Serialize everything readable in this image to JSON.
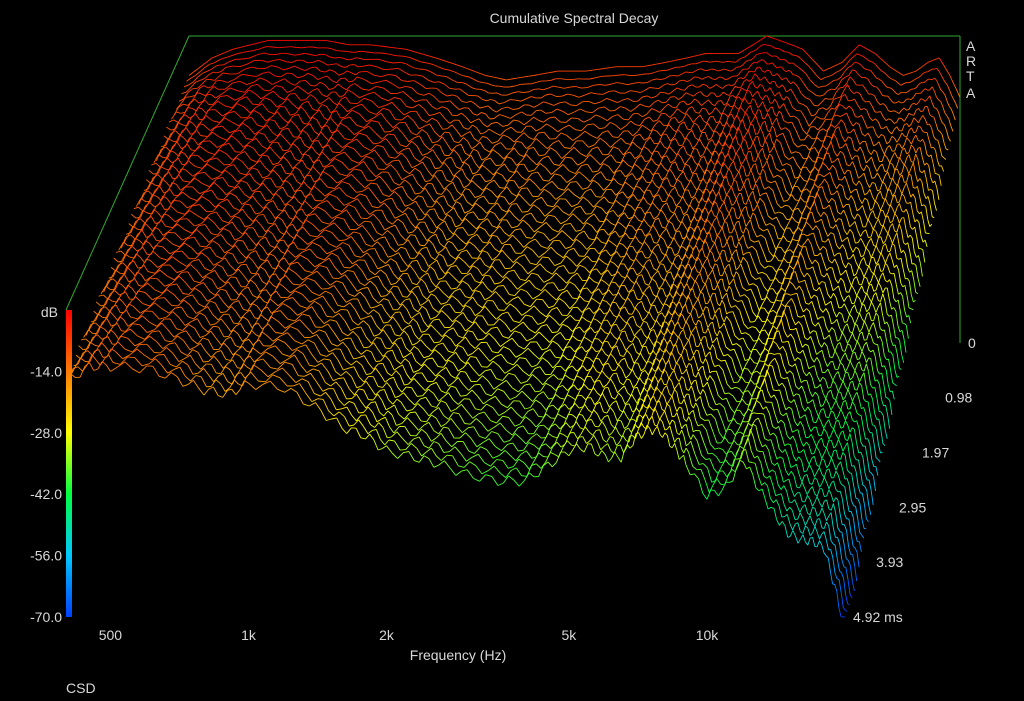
{
  "chart_data": {
    "type": "waterfall-3d",
    "title": "Cumulative Spectral Decay",
    "brand_letters": [
      "A",
      "R",
      "T",
      "A"
    ],
    "xlabel": "Frequency (Hz)",
    "x_scale": "log",
    "x_range": [
      400,
      20000
    ],
    "x_ticks": [
      {
        "value": 500,
        "label": "500"
      },
      {
        "value": 1000,
        "label": "1k"
      },
      {
        "value": 2000,
        "label": "2k"
      },
      {
        "value": 5000,
        "label": "5k"
      },
      {
        "value": 10000,
        "label": "10k"
      }
    ],
    "db_unit": "dB",
    "db_range": [
      -70,
      0
    ],
    "db_ticks": [
      {
        "value": -14,
        "label": "-14.0"
      },
      {
        "value": -28,
        "label": "-28.0"
      },
      {
        "value": -42,
        "label": "-42.0"
      },
      {
        "value": -56,
        "label": "-56.0"
      },
      {
        "value": -70,
        "label": "-70.0"
      }
    ],
    "time_unit": "ms",
    "time_range": [
      0,
      4.92
    ],
    "time_ticks": [
      {
        "value": 0,
        "label": "0"
      },
      {
        "value": 0.98,
        "label": "0.98"
      },
      {
        "value": 1.97,
        "label": "1.97"
      },
      {
        "value": 2.95,
        "label": "2.95"
      },
      {
        "value": 3.93,
        "label": "3.93"
      },
      {
        "value": 4.92,
        "label": "4.92 ms"
      }
    ],
    "slice_count": 50,
    "profile_freqs": [
      400,
      450,
      500,
      600,
      700,
      800,
      900,
      1000,
      1200,
      1400,
      1600,
      1800,
      2000,
      2300,
      2600,
      3000,
      3500,
      4000,
      4500,
      5000,
      5500,
      6000,
      6500,
      7000,
      7500,
      8000,
      8500,
      9000,
      10000,
      11000,
      12000,
      13000,
      14000,
      15000,
      16000,
      17000,
      18000,
      19000,
      20000
    ],
    "initial_response_db": [
      -9,
      -5,
      -3,
      -1,
      -1,
      -1,
      -2,
      -2,
      -3,
      -5,
      -7,
      -9,
      -10,
      -9,
      -8,
      -8,
      -7,
      -7,
      -6,
      -5,
      -4,
      -4,
      -4,
      -2,
      0,
      -1,
      -2,
      -3,
      -8,
      -6,
      -2,
      -4,
      -7,
      -9,
      -8,
      -6,
      -5,
      -9,
      -14
    ],
    "decay_rate_db_per_ms": [
      1.5,
      1.6,
      2,
      2.5,
      3,
      3.5,
      3.5,
      3,
      3,
      3.5,
      4,
      4,
      4.5,
      5,
      5.5,
      6,
      6.5,
      6.5,
      6,
      5.5,
      5.5,
      6,
      6,
      5.5,
      5.5,
      5.5,
      6,
      6.5,
      7,
      7,
      6.5,
      7.5,
      8,
      8.5,
      9,
      9.5,
      10,
      11,
      12
    ],
    "colorbar_colors": [
      "#ff0000",
      "#ff7a00",
      "#ffff00",
      "#00ff40",
      "#00c8ff",
      "#0040ff"
    ],
    "frame_color": "#2faa2f",
    "footer_label": "CSD"
  }
}
